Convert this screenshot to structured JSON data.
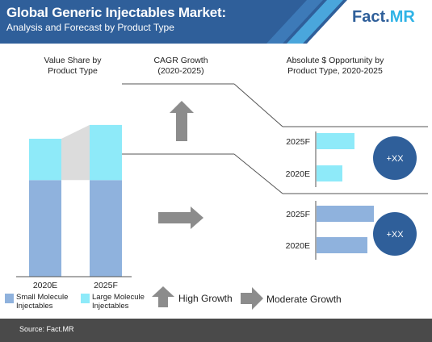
{
  "header": {
    "title": "Global Generic Injectables Market:",
    "subtitle": "Analysis and Forecast by Product Type",
    "logo_part1": "Fact.",
    "logo_part2": "MR"
  },
  "panels": {
    "value_share": "Value Share by Product Type",
    "cagr": "CAGR Growth (2020-2025)",
    "opportunity": "Absolute $ Opportunity by Product Type, 2020-2025"
  },
  "chart_data": [
    {
      "type": "bar",
      "title": "Value Share by Product Type",
      "stacked": true,
      "categories": [
        "2020E",
        "2025F"
      ],
      "series": [
        {
          "name": "Small Molecule Injectables",
          "values": [
            0.7,
            0.7
          ]
        },
        {
          "name": "Large Molecule Injectables",
          "values": [
            0.3,
            0.4
          ]
        }
      ]
    },
    {
      "type": "bar",
      "orientation": "horizontal",
      "title": "Absolute $ Opportunity by Product Type, 2020-2025",
      "groups": [
        {
          "series": "Large Molecule Injectables",
          "categories": [
            "2025F",
            "2020E"
          ],
          "values": [
            0.47,
            0.32
          ],
          "total_label": "+XX",
          "growth": "High Growth"
        },
        {
          "series": "Small Molecule Injectables",
          "categories": [
            "2025F",
            "2020E"
          ],
          "values": [
            0.71,
            0.63
          ],
          "total_label": "+XX",
          "growth": "Moderate Growth"
        }
      ]
    }
  ],
  "legend": {
    "small": "Small Molecule Injectables",
    "large": "Large Molecule Injectables",
    "high": "High Growth",
    "moderate": "Moderate Growth"
  },
  "colors": {
    "small": "#8fb2dd",
    "large": "#8eeaf9",
    "dark": "#2f5f9a",
    "arrow": "#8c8c8c",
    "connector": "#dcdcdc"
  },
  "footer": {
    "source": "Source: Fact.MR"
  }
}
